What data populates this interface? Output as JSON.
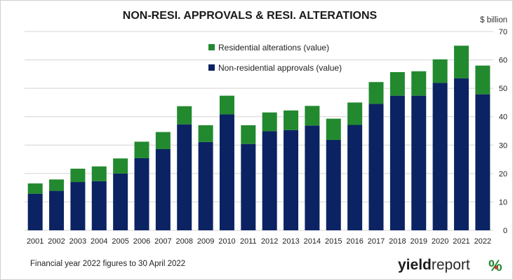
{
  "chart_data": {
    "type": "bar",
    "stacked": true,
    "title": "NON-RESI. APPROVALS & RESI. ALTERATIONS",
    "unit_label": "$ billion",
    "categories": [
      "2001",
      "2002",
      "2003",
      "2004",
      "2005",
      "2006",
      "2007",
      "2008",
      "2009",
      "2010",
      "2011",
      "2012",
      "2013",
      "2014",
      "2015",
      "2016",
      "2017",
      "2018",
      "2019",
      "2020",
      "2021",
      "2022"
    ],
    "series": [
      {
        "name": "Non-residential approvals (value)",
        "color": "#0b2363",
        "values": [
          12.9,
          13.9,
          17.0,
          17.3,
          20.0,
          25.4,
          28.6,
          37.3,
          31.1,
          40.8,
          30.4,
          34.9,
          35.3,
          36.9,
          31.8,
          37.1,
          44.5,
          47.4,
          47.4,
          51.9,
          53.5,
          47.9
        ]
      },
      {
        "name": "Residential alterations (value)",
        "color": "#22892f",
        "values": [
          3.6,
          4.0,
          4.7,
          5.2,
          5.3,
          5.8,
          6.0,
          6.4,
          5.9,
          6.6,
          6.6,
          6.6,
          6.9,
          6.9,
          7.5,
          7.9,
          7.7,
          8.3,
          8.6,
          8.3,
          11.5,
          10.1
        ]
      }
    ],
    "legend_order": [
      1,
      0
    ],
    "legend_position": "top-center",
    "ylim": [
      0,
      70
    ],
    "yticks": [
      0,
      10,
      20,
      30,
      40,
      50,
      60,
      70
    ],
    "y_axis_side": "right",
    "grid": true,
    "grid_color": "#d4d4d4"
  },
  "footnote": "Financial year 2022 figures to 30 April 2022",
  "logo": {
    "word_bold": "yield",
    "word_light": "report",
    "symbol": "%",
    "symbol_colors": [
      "#22892f",
      "#c0392b"
    ]
  }
}
